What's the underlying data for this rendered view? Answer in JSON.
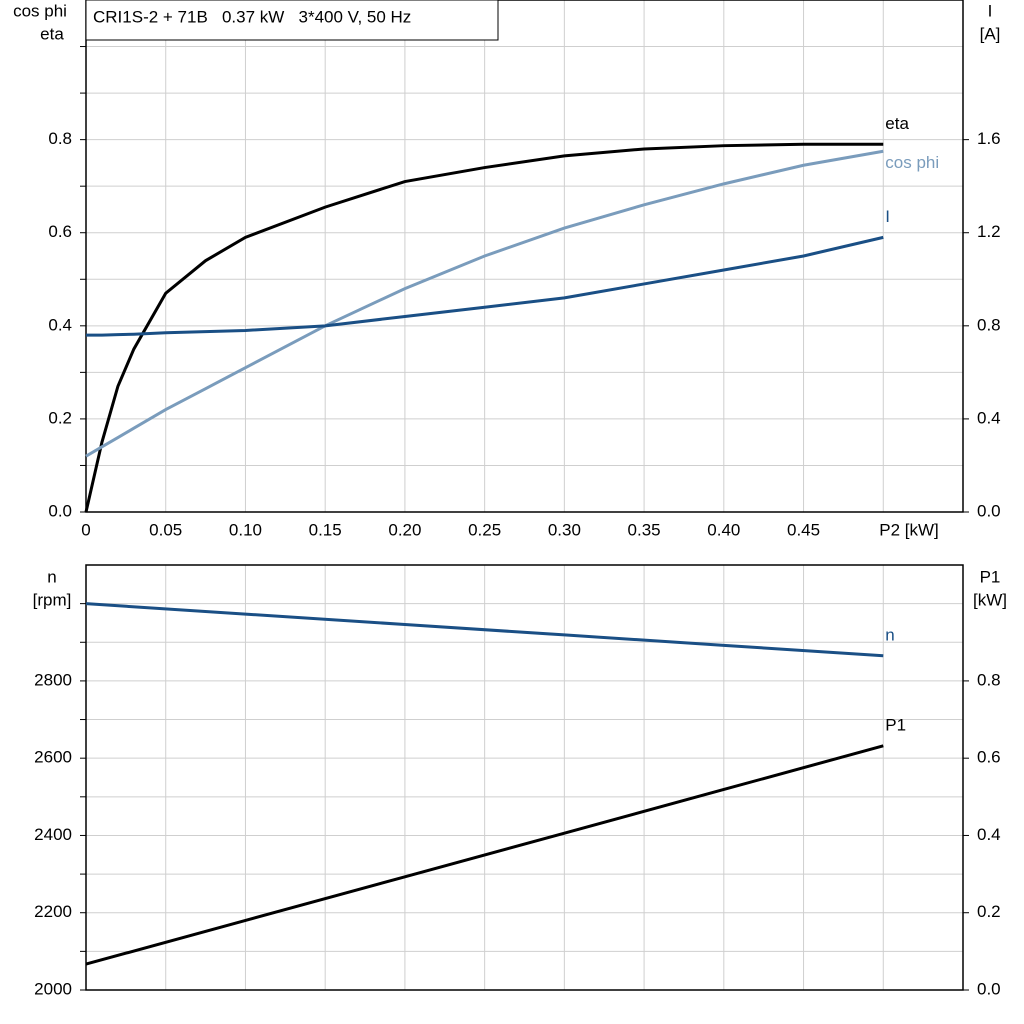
{
  "chart_data": [
    {
      "type": "line",
      "title": "CRI1S-2 + 71B   0.37 kW   3*400 V, 50 Hz",
      "xlabel": "P2 [kW]",
      "ylabel": [
        "cos phi",
        "eta"
      ],
      "y2label": [
        "I",
        "[A]"
      ],
      "x": [
        0,
        0.01,
        0.02,
        0.03,
        0.05,
        0.075,
        0.1,
        0.15,
        0.2,
        0.25,
        0.3,
        0.35,
        0.4,
        0.45,
        0.5
      ],
      "xlim": [
        0,
        0.55
      ],
      "xticks": [
        {
          "value": 0,
          "label": "0"
        },
        0.05,
        {
          "value": 0.1,
          "label": "0.10"
        },
        0.15,
        {
          "value": 0.2,
          "label": "0.20"
        },
        0.25,
        {
          "value": 0.3,
          "label": "0.30"
        },
        0.35,
        {
          "value": 0.4,
          "label": "0.40"
        },
        0.45
      ],
      "minor_xticks": [
        0.5
      ],
      "ylim": [
        0,
        1.1
      ],
      "yticks": [
        {
          "value": 0,
          "label": "0.0"
        },
        0.2,
        0.4,
        0.6,
        0.8
      ],
      "minor_yticks": [
        0.1,
        0.3,
        0.5,
        0.7,
        0.9,
        1.0
      ],
      "y2lim": [
        0,
        2.2
      ],
      "y2ticks": [
        {
          "value": 0,
          "label": "0.0"
        },
        0.4,
        0.8,
        1.2,
        1.6
      ],
      "grid": true,
      "series": [
        {
          "name": "eta",
          "color": "#000000",
          "values": [
            0,
            0.15,
            0.27,
            0.35,
            0.47,
            0.54,
            0.59,
            0.655,
            0.71,
            0.74,
            0.765,
            0.78,
            0.787,
            0.79,
            0.79
          ]
        },
        {
          "name": "cos phi",
          "color": "#7a9cbc",
          "values": [
            0.12,
            0.14,
            0.16,
            0.18,
            0.22,
            0.265,
            0.31,
            0.4,
            0.48,
            0.55,
            0.61,
            0.66,
            0.705,
            0.745,
            0.775
          ]
        },
        {
          "name": "I",
          "color": "#1a4f85",
          "axis": "y2",
          "values": [
            0.76,
            0.76,
            0.762,
            0.764,
            0.77,
            0.775,
            0.78,
            0.8,
            0.84,
            0.88,
            0.92,
            0.98,
            1.04,
            1.1,
            1.18
          ]
        }
      ]
    },
    {
      "type": "line",
      "ylabel": [
        "n",
        "[rpm]"
      ],
      "y2label": [
        "P1",
        "[kW]"
      ],
      "x": [
        0,
        0.1,
        0.2,
        0.3,
        0.4,
        0.5
      ],
      "xlim": [
        0,
        0.55
      ],
      "minor_xticks": [
        0.05,
        0.1,
        0.15,
        0.2,
        0.25,
        0.3,
        0.35,
        0.4,
        0.45,
        0.5
      ],
      "ylim": [
        2000,
        3100
      ],
      "yticks": [
        2000,
        2200,
        2400,
        2600,
        2800
      ],
      "minor_yticks": [
        2100,
        2300,
        2500,
        2700,
        2900,
        3000
      ],
      "y2lim": [
        0,
        1.1
      ],
      "y2ticks": [
        {
          "value": 0,
          "label": "0.0"
        },
        0.2,
        0.4,
        0.6,
        0.8
      ],
      "grid": true,
      "series": [
        {
          "name": "n",
          "color": "#1a4f85",
          "values": [
            3000,
            2973,
            2946,
            2919,
            2892,
            2865
          ]
        },
        {
          "name": "P1",
          "color": "#000000",
          "axis": "y2",
          "values": [
            0.067,
            0.18,
            0.293,
            0.406,
            0.519,
            0.632
          ]
        }
      ]
    }
  ]
}
